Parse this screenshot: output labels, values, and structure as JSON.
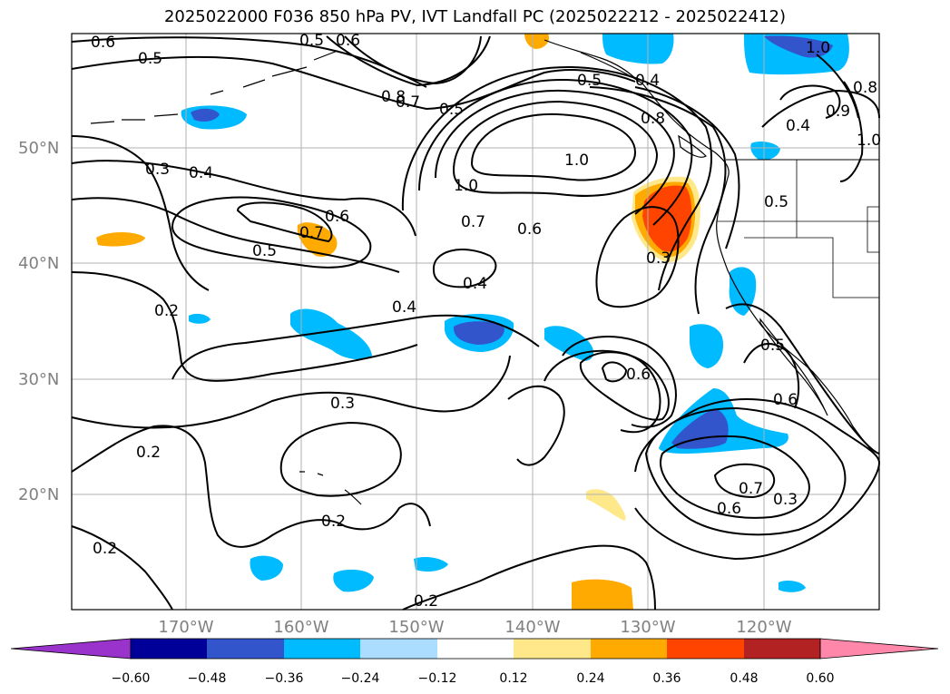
{
  "title": "2025022000 F036 850 hPa PV, IVT Landfall PC (2025022212 - 2025022412)",
  "lat_labels": [
    "50°N",
    "40°N",
    "30°N",
    "20°N"
  ],
  "lon_labels": [
    "170°W",
    "160°W",
    "150°W",
    "140°W",
    "130°W",
    "120°W"
  ],
  "colorbar": {
    "ticks": [
      "−0.60",
      "−0.48",
      "−0.36",
      "−0.24",
      "−0.12",
      "0.12",
      "0.24",
      "0.36",
      "0.48",
      "0.60"
    ],
    "colors": [
      "#9933cc",
      "#000099",
      "#3355cc",
      "#00bbff",
      "#aaddff",
      "#ffffff",
      "#ffe88a",
      "#ffaa00",
      "#ff4400",
      "#b22222",
      "#ff88aa"
    ]
  },
  "contour_labels": [
    {
      "text": "0.6"
    },
    {
      "text": "0.5"
    },
    {
      "text": "0.5"
    },
    {
      "text": "0.6"
    },
    {
      "text": "0.8"
    },
    {
      "text": "0.7"
    },
    {
      "text": "0.5"
    },
    {
      "text": "0.5"
    },
    {
      "text": "0.4"
    },
    {
      "text": "1.0"
    },
    {
      "text": "0.3"
    },
    {
      "text": "0.4"
    },
    {
      "text": "1.0"
    },
    {
      "text": "0.7"
    },
    {
      "text": "0.6"
    },
    {
      "text": "0.6"
    },
    {
      "text": "0.5"
    },
    {
      "text": "0.7"
    },
    {
      "text": "0.3"
    },
    {
      "text": "0.4"
    },
    {
      "text": "0.2"
    },
    {
      "text": "0.4"
    },
    {
      "text": "0.6"
    },
    {
      "text": "0.3"
    },
    {
      "text": "0.2"
    },
    {
      "text": "0.2"
    },
    {
      "text": "0.2"
    },
    {
      "text": "0.2"
    },
    {
      "text": "0.7"
    },
    {
      "text": "0.6"
    },
    {
      "text": "0.3"
    },
    {
      "text": "0.5"
    },
    {
      "text": "0.6"
    },
    {
      "text": "1.0"
    },
    {
      "text": "0.8"
    },
    {
      "text": "0.9"
    },
    {
      "text": "1.0"
    },
    {
      "text": "0.4"
    },
    {
      "text": "0.5"
    },
    {
      "text": "0.8"
    }
  ]
}
